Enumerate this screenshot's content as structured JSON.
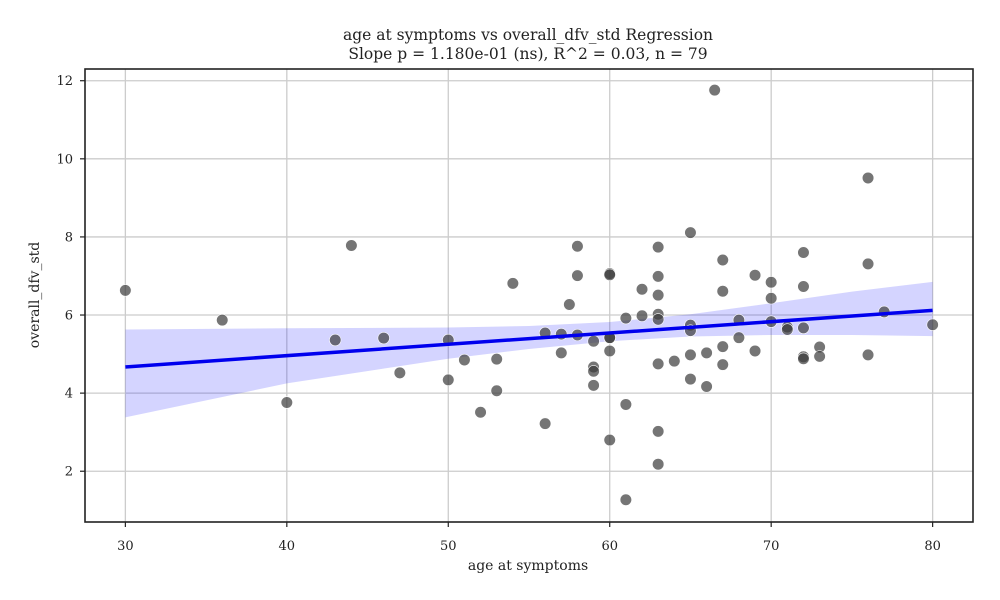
{
  "chart_data": {
    "type": "scatter",
    "title": "age at symptoms vs overall_dfv_std Regression",
    "subtitle": "Slope p = 1.180e-01 (ns), R^2 = 0.03, n = 79",
    "xlabel": "age at symptoms",
    "ylabel": "overall_dfv_std",
    "xlim": [
      27.5,
      82.5
    ],
    "ylim": [
      0.7,
      12.3
    ],
    "xticks": [
      30,
      40,
      50,
      60,
      70,
      80
    ],
    "yticks": [
      2,
      4,
      6,
      8,
      10,
      12
    ],
    "grid": true,
    "colors": {
      "points": "#3a3a3a",
      "regression": "#0000ee",
      "ci_band": "#0000ff"
    },
    "regression": {
      "x": [
        30,
        80
      ],
      "y": [
        4.67,
        6.12
      ]
    },
    "ci_band": {
      "x": [
        30,
        40,
        50,
        55,
        60,
        65,
        70,
        75,
        80
      ],
      "lower": [
        3.38,
        4.25,
        4.88,
        5.13,
        5.33,
        5.45,
        5.49,
        5.49,
        5.46
      ],
      "upper": [
        5.63,
        5.66,
        5.68,
        5.72,
        5.82,
        6.02,
        6.3,
        6.6,
        6.85
      ]
    },
    "points": [
      {
        "x": 30,
        "y": 6.63
      },
      {
        "x": 36,
        "y": 5.87
      },
      {
        "x": 40,
        "y": 3.76
      },
      {
        "x": 43,
        "y": 5.36
      },
      {
        "x": 44,
        "y": 7.78
      },
      {
        "x": 46,
        "y": 5.41
      },
      {
        "x": 47,
        "y": 4.52
      },
      {
        "x": 50,
        "y": 5.36
      },
      {
        "x": 50,
        "y": 4.34
      },
      {
        "x": 51,
        "y": 4.85
      },
      {
        "x": 52,
        "y": 3.51
      },
      {
        "x": 53,
        "y": 4.87
      },
      {
        "x": 53,
        "y": 4.06
      },
      {
        "x": 54,
        "y": 6.81
      },
      {
        "x": 56,
        "y": 5.54
      },
      {
        "x": 56,
        "y": 3.22
      },
      {
        "x": 57,
        "y": 5.51
      },
      {
        "x": 57,
        "y": 5.03
      },
      {
        "x": 57.5,
        "y": 6.27
      },
      {
        "x": 58,
        "y": 7.76
      },
      {
        "x": 58,
        "y": 7.01
      },
      {
        "x": 58,
        "y": 5.49
      },
      {
        "x": 59,
        "y": 5.33
      },
      {
        "x": 59,
        "y": 4.67
      },
      {
        "x": 59,
        "y": 4.56
      },
      {
        "x": 59,
        "y": 4.2
      },
      {
        "x": 60,
        "y": 7.06
      },
      {
        "x": 60,
        "y": 7.03
      },
      {
        "x": 60,
        "y": 5.42
      },
      {
        "x": 60,
        "y": 5.08
      },
      {
        "x": 60,
        "y": 2.8
      },
      {
        "x": 61,
        "y": 5.92
      },
      {
        "x": 61,
        "y": 3.71
      },
      {
        "x": 61,
        "y": 1.27
      },
      {
        "x": 62,
        "y": 6.66
      },
      {
        "x": 62,
        "y": 5.98
      },
      {
        "x": 63,
        "y": 7.74
      },
      {
        "x": 63,
        "y": 6.99
      },
      {
        "x": 63,
        "y": 6.51
      },
      {
        "x": 63,
        "y": 6.02
      },
      {
        "x": 63,
        "y": 5.89
      },
      {
        "x": 63,
        "y": 4.75
      },
      {
        "x": 63,
        "y": 3.02
      },
      {
        "x": 63,
        "y": 2.18
      },
      {
        "x": 64,
        "y": 4.82
      },
      {
        "x": 65,
        "y": 8.11
      },
      {
        "x": 65,
        "y": 5.74
      },
      {
        "x": 65,
        "y": 5.6
      },
      {
        "x": 65,
        "y": 4.98
      },
      {
        "x": 65,
        "y": 4.36
      },
      {
        "x": 66,
        "y": 5.03
      },
      {
        "x": 66,
        "y": 4.17
      },
      {
        "x": 66.5,
        "y": 11.76
      },
      {
        "x": 67,
        "y": 7.41
      },
      {
        "x": 67,
        "y": 6.61
      },
      {
        "x": 67,
        "y": 5.19
      },
      {
        "x": 67,
        "y": 4.73
      },
      {
        "x": 68,
        "y": 5.87
      },
      {
        "x": 68,
        "y": 5.42
      },
      {
        "x": 69,
        "y": 7.02
      },
      {
        "x": 69,
        "y": 5.08
      },
      {
        "x": 70,
        "y": 6.84
      },
      {
        "x": 70,
        "y": 6.43
      },
      {
        "x": 70,
        "y": 5.83
      },
      {
        "x": 71,
        "y": 5.69
      },
      {
        "x": 71,
        "y": 5.63
      },
      {
        "x": 72,
        "y": 7.6
      },
      {
        "x": 72,
        "y": 6.73
      },
      {
        "x": 72,
        "y": 5.67
      },
      {
        "x": 72,
        "y": 4.93
      },
      {
        "x": 72,
        "y": 4.88
      },
      {
        "x": 73,
        "y": 5.18
      },
      {
        "x": 73,
        "y": 4.94
      },
      {
        "x": 76,
        "y": 9.51
      },
      {
        "x": 76,
        "y": 7.31
      },
      {
        "x": 76,
        "y": 4.98
      },
      {
        "x": 77,
        "y": 6.08
      },
      {
        "x": 80,
        "y": 5.75
      },
      {
        "x": 60,
        "y": 5.42
      }
    ]
  }
}
